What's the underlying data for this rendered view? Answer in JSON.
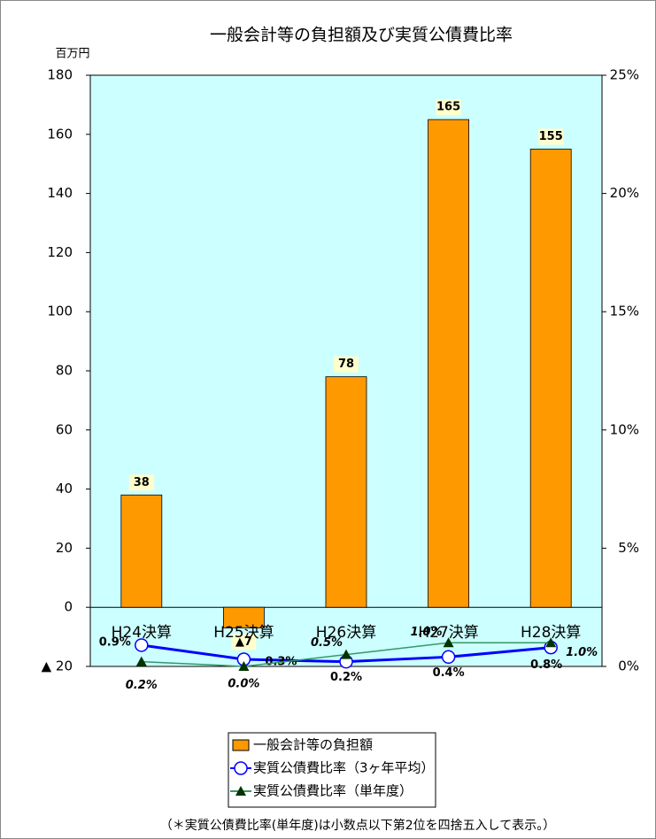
{
  "chart_data": {
    "type": "bar",
    "title": "一般会計等の負担額及び実質公債費比率",
    "y_unit": "百万円",
    "categories": [
      "H24決算",
      "H25決算",
      "H26決算",
      "H27決算",
      "H28決算"
    ],
    "series": [
      {
        "name": "一般会計等の負担額",
        "type": "bar",
        "color": "#ff9900",
        "values": [
          38,
          -7,
          78,
          165,
          155
        ],
        "value_labels": [
          "38",
          "▲7",
          "78",
          "165",
          "155"
        ]
      },
      {
        "name": "実質公債費比率（3ヶ年平均）",
        "type": "line",
        "axis": "y2",
        "color": "#0000ff",
        "marker": "circle",
        "values": [
          0.9,
          0.3,
          0.2,
          0.4,
          0.8
        ],
        "value_labels": [
          "0.9%",
          "0.3%",
          "0.2%",
          "0.4%",
          "0.8%"
        ]
      },
      {
        "name": "実質公債費比率（単年度）",
        "type": "line",
        "axis": "y2",
        "color": "#339966",
        "marker": "triangle",
        "values": [
          0.2,
          0.0,
          0.5,
          1.0,
          1.0
        ],
        "value_labels": [
          "0.2%",
          "0.0%",
          "0.5%",
          "1.0%",
          "1.0%"
        ]
      }
    ],
    "ylim": [
      -20,
      180
    ],
    "yticks": [
      {
        "value": -20,
        "label": "▲ 20"
      },
      0,
      20,
      40,
      60,
      80,
      100,
      120,
      140,
      160,
      180
    ],
    "y2lim": [
      0,
      25
    ],
    "y2ticks": [
      {
        "value": 0,
        "label": "0%"
      },
      {
        "value": 5,
        "label": "5%"
      },
      {
        "value": 10,
        "label": "10%"
      },
      {
        "value": 15,
        "label": "15%"
      },
      {
        "value": 20,
        "label": "20%"
      },
      {
        "value": 25,
        "label": "25%"
      }
    ],
    "plot_background": "#ccffff",
    "note": "（＊実質公債費比率(単年度)は小数点以下第2位を四捨五入して表示。）"
  }
}
